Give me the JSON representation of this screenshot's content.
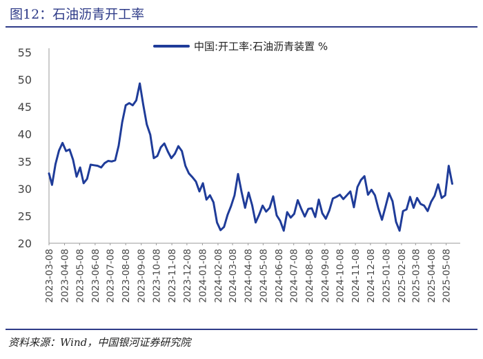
{
  "page": {
    "title": "图12：石油沥青开工率",
    "source": "资料来源：Wind，中国银河证券研究院"
  },
  "colors": {
    "accent": "#2e3b88",
    "series": "#1f3c99"
  },
  "chart_data": {
    "type": "line",
    "title": "",
    "xlabel": "",
    "ylabel": "",
    "ylim": [
      20,
      55
    ],
    "yticks": [
      20,
      25,
      30,
      35,
      40,
      45,
      50,
      55
    ],
    "grid": false,
    "legend_position": "top-center",
    "x_tick_labels": [
      "2023-03-08",
      "2023-04-08",
      "2023-05-08",
      "2023-06-08",
      "2023-07-08",
      "2023-08-08",
      "2023-09-08",
      "2023-10-08",
      "2023-11-08",
      "2023-12-08",
      "2024-01-08",
      "2024-02-08",
      "2024-03-08",
      "2024-04-08",
      "2024-05-08",
      "2024-06-08",
      "2024-07-08",
      "2024-08-08",
      "2024-09-08",
      "2024-10-08",
      "2024-11-08",
      "2024-12-08",
      "2025-01-08",
      "2025-02-08",
      "2025-03-08",
      "2025-04-08",
      "2025-05-08"
    ],
    "x_range": [
      "2023-03-08",
      "2025-06-05"
    ],
    "series": [
      {
        "name": "中国:开工率:石油沥青装置 %",
        "points": [
          [
            "2023-03-08",
            32.8
          ],
          [
            "2023-03-14",
            30.7
          ],
          [
            "2023-03-21",
            34.5
          ],
          [
            "2023-03-28",
            37.0
          ],
          [
            "2023-04-04",
            38.4
          ],
          [
            "2023-04-11",
            36.9
          ],
          [
            "2023-04-18",
            37.2
          ],
          [
            "2023-04-25",
            35.3
          ],
          [
            "2023-05-02",
            32.2
          ],
          [
            "2023-05-09",
            33.9
          ],
          [
            "2023-05-16",
            31.0
          ],
          [
            "2023-05-23",
            31.8
          ],
          [
            "2023-05-30",
            34.4
          ],
          [
            "2023-06-06",
            34.3
          ],
          [
            "2023-06-13",
            34.2
          ],
          [
            "2023-06-20",
            33.9
          ],
          [
            "2023-06-27",
            34.7
          ],
          [
            "2023-07-04",
            35.1
          ],
          [
            "2023-07-11",
            35.0
          ],
          [
            "2023-07-18",
            35.2
          ],
          [
            "2023-07-25",
            37.9
          ],
          [
            "2023-08-01",
            42.2
          ],
          [
            "2023-08-08",
            45.3
          ],
          [
            "2023-08-15",
            45.7
          ],
          [
            "2023-08-22",
            45.3
          ],
          [
            "2023-08-29",
            46.2
          ],
          [
            "2023-09-05",
            49.3
          ],
          [
            "2023-09-12",
            45.4
          ],
          [
            "2023-09-19",
            41.8
          ],
          [
            "2023-09-26",
            39.9
          ],
          [
            "2023-10-03",
            35.6
          ],
          [
            "2023-10-10",
            36.0
          ],
          [
            "2023-10-17",
            37.6
          ],
          [
            "2023-10-24",
            38.3
          ],
          [
            "2023-10-31",
            36.8
          ],
          [
            "2023-11-07",
            35.6
          ],
          [
            "2023-11-14",
            36.4
          ],
          [
            "2023-11-21",
            37.8
          ],
          [
            "2023-11-28",
            36.9
          ],
          [
            "2023-12-05",
            34.2
          ],
          [
            "2023-12-12",
            32.8
          ],
          [
            "2023-12-19",
            32.1
          ],
          [
            "2023-12-26",
            31.3
          ],
          [
            "2024-01-02",
            29.5
          ],
          [
            "2024-01-09",
            31.0
          ],
          [
            "2024-01-16",
            28.0
          ],
          [
            "2024-01-23",
            28.8
          ],
          [
            "2024-01-30",
            27.5
          ],
          [
            "2024-02-06",
            23.8
          ],
          [
            "2024-02-13",
            22.4
          ],
          [
            "2024-02-20",
            23.0
          ],
          [
            "2024-02-27",
            25.2
          ],
          [
            "2024-03-05",
            26.8
          ],
          [
            "2024-03-12",
            28.8
          ],
          [
            "2024-03-19",
            32.7
          ],
          [
            "2024-03-26",
            29.4
          ],
          [
            "2024-04-02",
            26.5
          ],
          [
            "2024-04-09",
            29.3
          ],
          [
            "2024-04-16",
            27.0
          ],
          [
            "2024-04-23",
            23.8
          ],
          [
            "2024-04-30",
            25.2
          ],
          [
            "2024-05-07",
            26.9
          ],
          [
            "2024-05-14",
            25.8
          ],
          [
            "2024-05-21",
            26.5
          ],
          [
            "2024-05-28",
            28.6
          ],
          [
            "2024-06-04",
            25.1
          ],
          [
            "2024-06-11",
            24.1
          ],
          [
            "2024-06-18",
            22.3
          ],
          [
            "2024-06-25",
            25.7
          ],
          [
            "2024-07-02",
            24.7
          ],
          [
            "2024-07-09",
            25.4
          ],
          [
            "2024-07-16",
            27.9
          ],
          [
            "2024-07-23",
            26.3
          ],
          [
            "2024-07-30",
            24.9
          ],
          [
            "2024-08-06",
            26.3
          ],
          [
            "2024-08-13",
            26.4
          ],
          [
            "2024-08-20",
            24.8
          ],
          [
            "2024-08-27",
            28.0
          ],
          [
            "2024-09-03",
            25.5
          ],
          [
            "2024-09-10",
            24.5
          ],
          [
            "2024-09-17",
            26.0
          ],
          [
            "2024-09-24",
            28.2
          ],
          [
            "2024-10-01",
            28.5
          ],
          [
            "2024-10-08",
            28.9
          ],
          [
            "2024-10-15",
            28.1
          ],
          [
            "2024-10-22",
            28.8
          ],
          [
            "2024-10-29",
            29.5
          ],
          [
            "2024-11-05",
            26.6
          ],
          [
            "2024-11-12",
            30.3
          ],
          [
            "2024-11-19",
            31.6
          ],
          [
            "2024-11-26",
            32.3
          ],
          [
            "2024-12-03",
            28.9
          ],
          [
            "2024-12-10",
            29.8
          ],
          [
            "2024-12-17",
            28.8
          ],
          [
            "2024-12-24",
            26.3
          ],
          [
            "2024-12-31",
            24.3
          ],
          [
            "2025-01-07",
            26.7
          ],
          [
            "2025-01-14",
            29.2
          ],
          [
            "2025-01-21",
            27.7
          ],
          [
            "2025-01-28",
            23.9
          ],
          [
            "2025-02-04",
            22.3
          ],
          [
            "2025-02-11",
            25.9
          ],
          [
            "2025-02-18",
            26.2
          ],
          [
            "2025-02-25",
            28.5
          ],
          [
            "2025-03-04",
            26.5
          ],
          [
            "2025-03-11",
            28.3
          ],
          [
            "2025-03-18",
            27.2
          ],
          [
            "2025-03-25",
            26.9
          ],
          [
            "2025-04-01",
            25.9
          ],
          [
            "2025-04-08",
            27.6
          ],
          [
            "2025-04-15",
            28.7
          ],
          [
            "2025-04-22",
            30.8
          ],
          [
            "2025-04-29",
            28.3
          ],
          [
            "2025-05-06",
            28.8
          ],
          [
            "2025-05-13",
            34.2
          ],
          [
            "2025-05-20",
            30.9
          ]
        ]
      }
    ]
  }
}
